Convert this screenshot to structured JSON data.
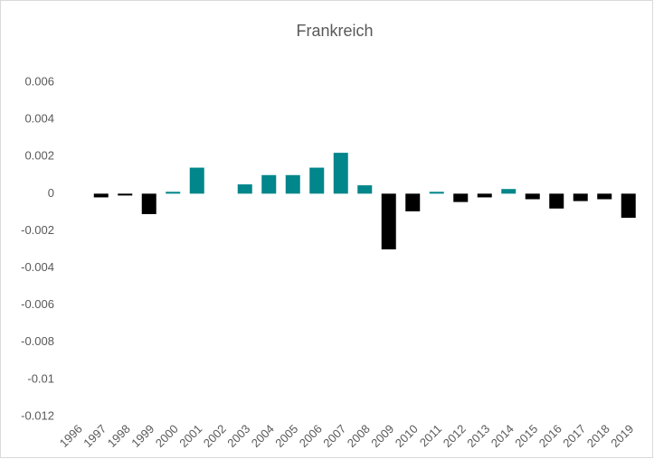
{
  "chart_data": {
    "type": "bar",
    "title": "Frankreich",
    "categories": [
      "1996",
      "1997",
      "1998",
      "1999",
      "2000",
      "2001",
      "2002",
      "2003",
      "2004",
      "2005",
      "2006",
      "2007",
      "2008",
      "2009",
      "2010",
      "2011",
      "2012",
      "2013",
      "2014",
      "2015",
      "2016",
      "2017",
      "2018",
      "2019"
    ],
    "values": [
      0,
      -0.0002,
      -0.0001,
      -0.0011,
      0.0001,
      0.0014,
      0,
      0.0005,
      0.001,
      0.001,
      0.0014,
      0.0022,
      0.00045,
      -0.003,
      -0.00095,
      0.0001,
      -0.00045,
      -0.0002,
      0.00025,
      -0.0003,
      -0.0008,
      -0.0004,
      -0.0003,
      -0.0013
    ],
    "positive_color": "#00868b",
    "negative_color": "#000000",
    "ylim": [
      -0.012,
      0.006
    ],
    "yticks": [
      0.006,
      0.004,
      0.002,
      0,
      -0.002,
      -0.004,
      -0.006,
      -0.008,
      -0.01,
      -0.012
    ],
    "grid": false
  }
}
